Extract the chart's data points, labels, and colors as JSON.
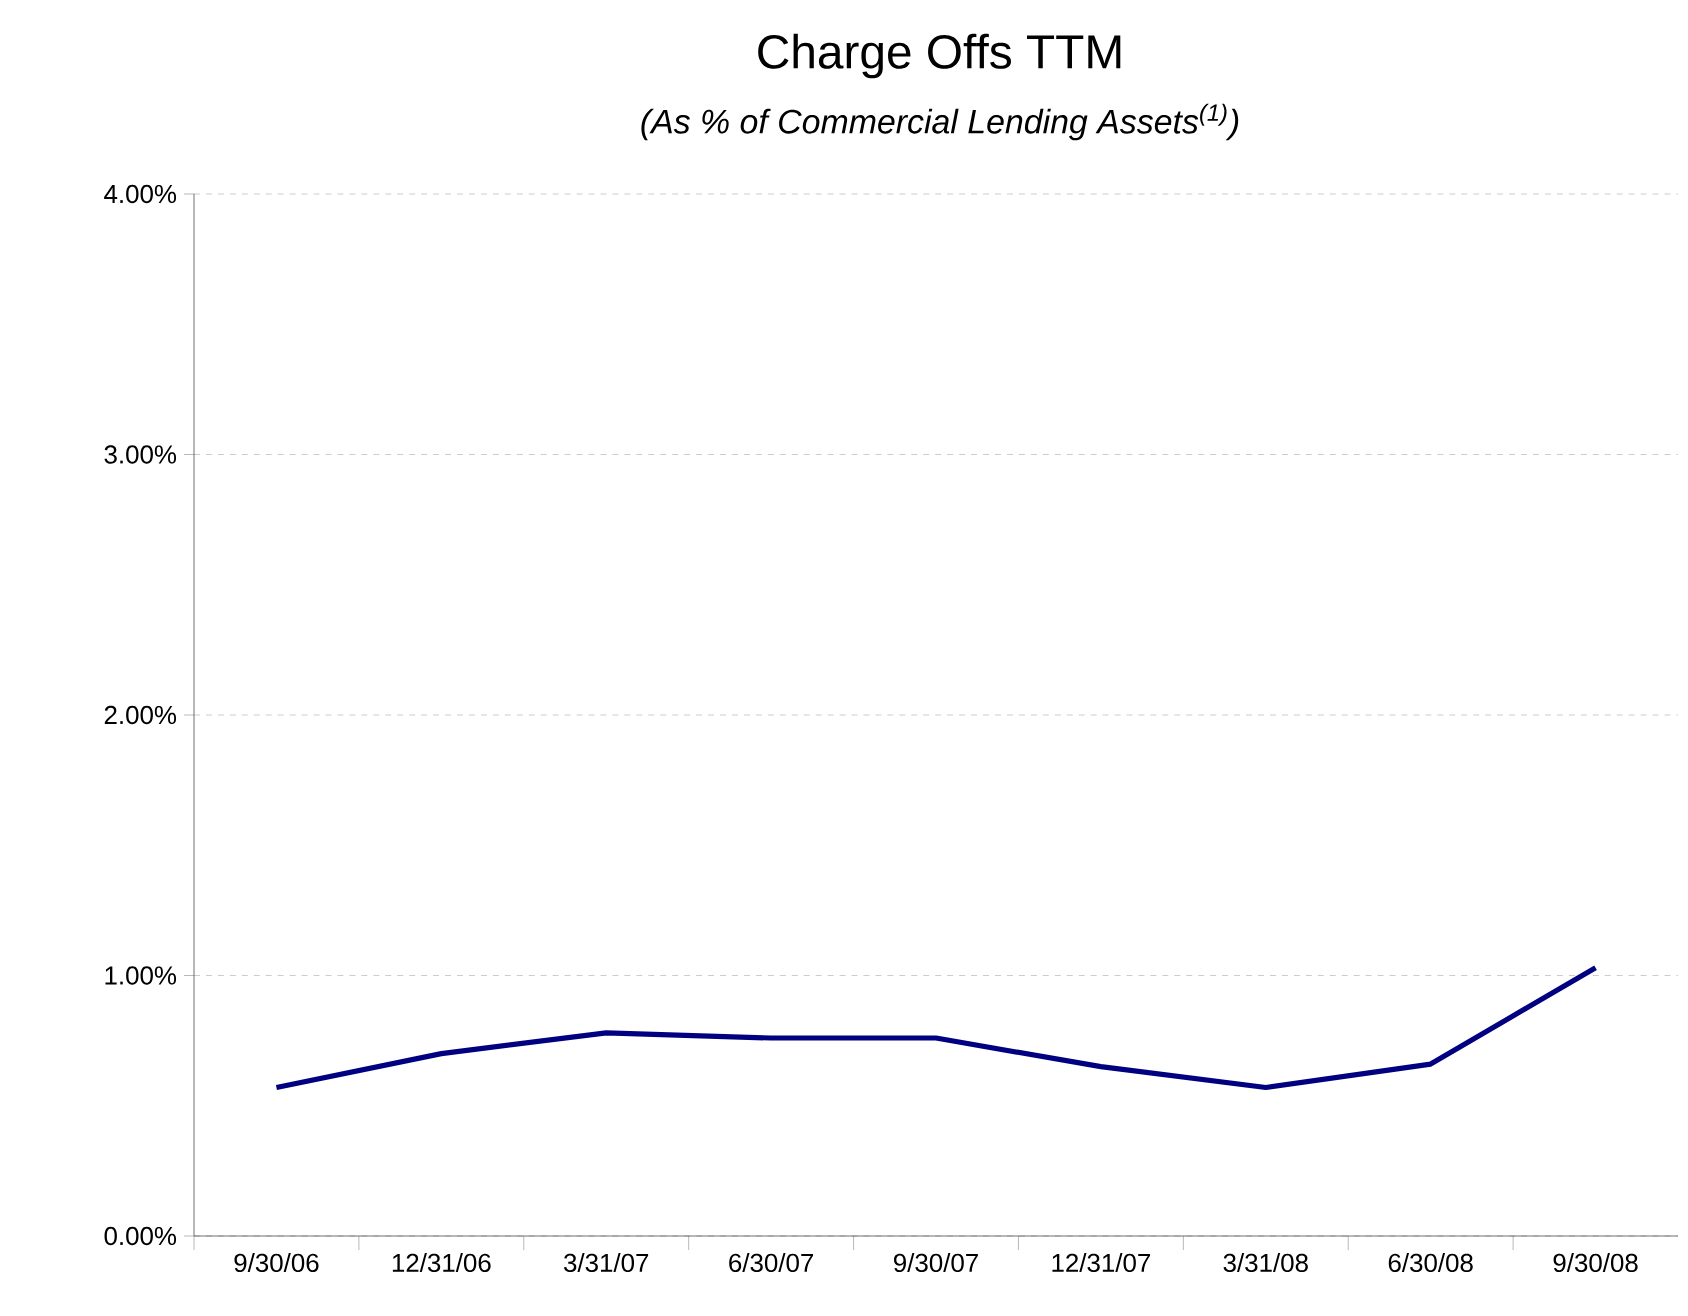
{
  "chart_data": {
    "type": "line",
    "title": "Charge Offs TTM",
    "subtitle": "(As % of Commercial Lending Assets$^{(1)}$)",
    "categories": [
      "9/30/06",
      "12/31/06",
      "3/31/07",
      "6/30/07",
      "9/30/07",
      "12/31/07",
      "3/31/08",
      "6/30/08",
      "9/30/08"
    ],
    "series": [
      {
        "color": "#000080",
        "values": [
          0.57,
          0.7,
          0.78,
          0.76,
          0.76,
          0.65,
          0.57,
          0.66,
          1.03
        ]
      }
    ],
    "ylim": [
      0,
      4
    ],
    "yticks": [
      {
        "value": 0,
        "label": "0.00%"
      },
      {
        "value": 1,
        "label": "1.00%"
      },
      {
        "value": 2,
        "label": "2.00%"
      },
      {
        "value": 3,
        "label": "3.00%"
      },
      {
        "value": 4,
        "label": "4.00%"
      }
    ],
    "grid": "y",
    "marker": "none",
    "line_style": "solid"
  }
}
